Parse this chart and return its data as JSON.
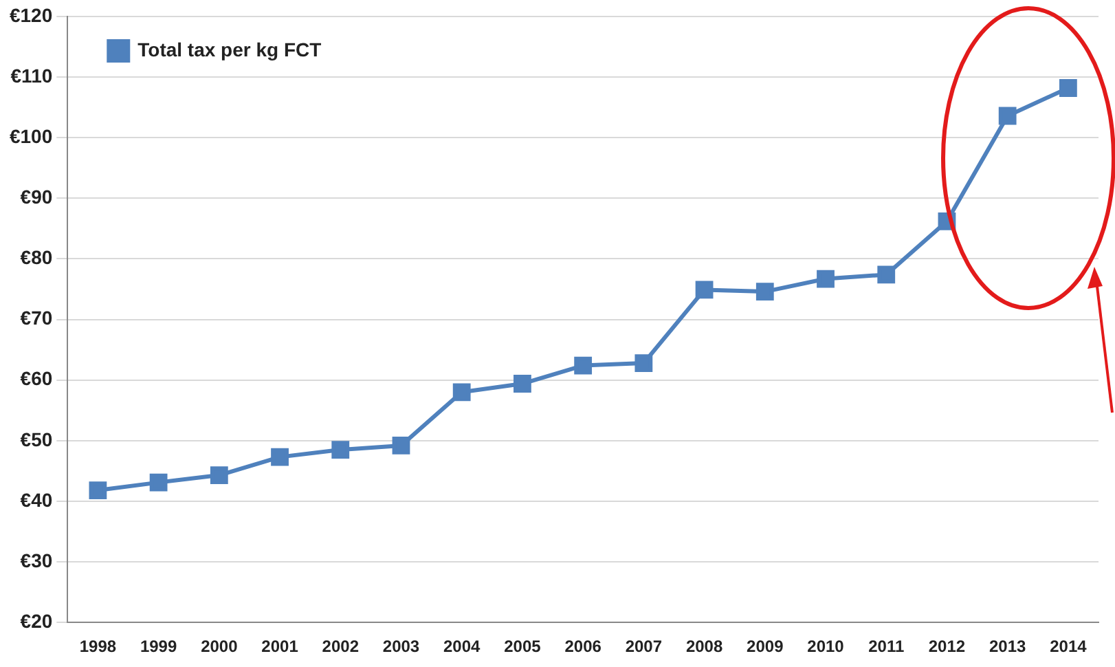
{
  "chart_data": {
    "type": "line",
    "categories": [
      "1998",
      "1999",
      "2000",
      "2001",
      "2002",
      "2003",
      "2004",
      "2005",
      "2006",
      "2007",
      "2008",
      "2009",
      "2010",
      "2011",
      "2012",
      "2013",
      "2014"
    ],
    "series": [
      {
        "name": "Total tax per kg FCT",
        "color": "#4f81bd",
        "values": [
          41.8,
          43.1,
          44.3,
          47.3,
          48.5,
          49.2,
          58.0,
          59.4,
          62.4,
          62.8,
          74.9,
          74.6,
          76.7,
          77.4,
          86.2,
          103.6,
          108.2
        ]
      }
    ],
    "ylim": [
      20,
      120
    ],
    "yticks": [
      {
        "value": 20,
        "label": "€20"
      },
      {
        "value": 30,
        "label": "€30"
      },
      {
        "value": 40,
        "label": "€40"
      },
      {
        "value": 50,
        "label": "€50"
      },
      {
        "value": 60,
        "label": "€60"
      },
      {
        "value": 70,
        "label": "€70"
      },
      {
        "value": 80,
        "label": "€80"
      },
      {
        "value": 90,
        "label": "€90"
      },
      {
        "value": 100,
        "label": "€100"
      },
      {
        "value": 110,
        "label": "€110"
      },
      {
        "value": 120,
        "label": "€120"
      }
    ],
    "grid": "y",
    "legend": "top left",
    "marker": "square",
    "line_style": "solid"
  }
}
